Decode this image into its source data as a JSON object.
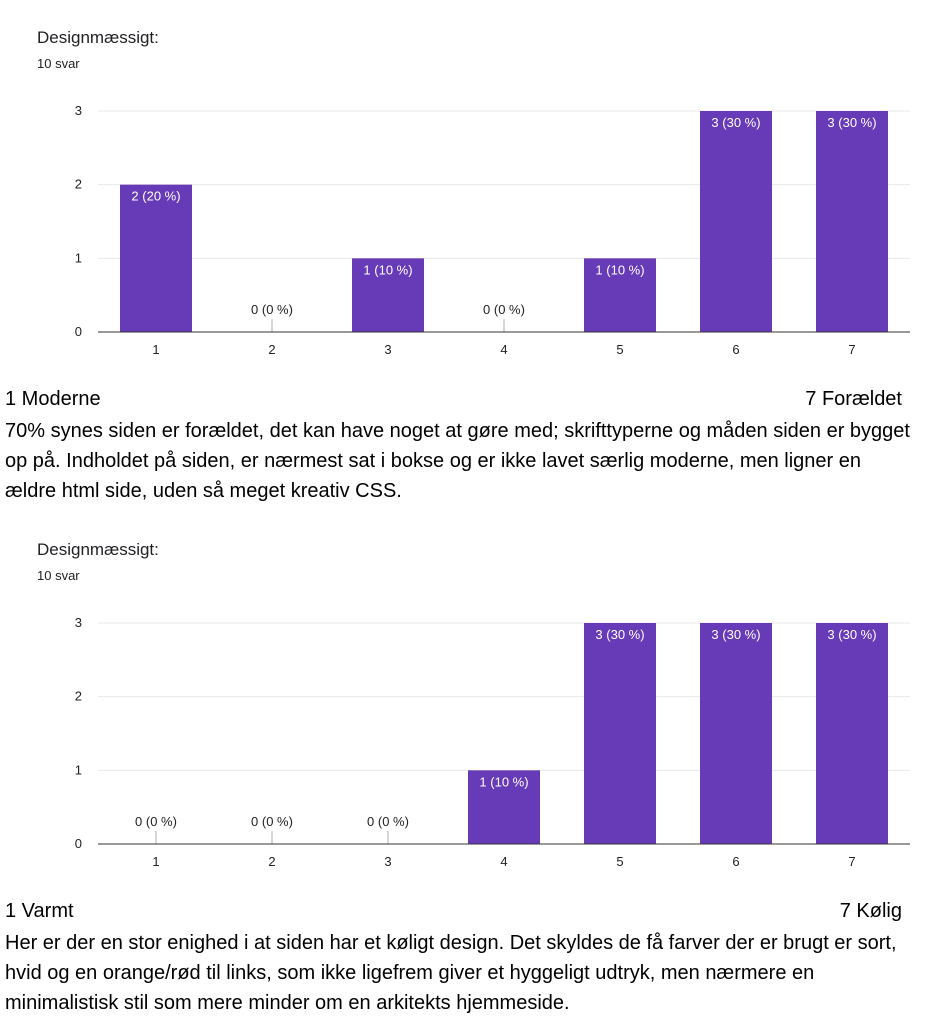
{
  "chart_data": [
    {
      "type": "bar",
      "title": "Designmæssigt:",
      "response_count": "10 svar",
      "categories": [
        "1",
        "2",
        "3",
        "4",
        "5",
        "6",
        "7"
      ],
      "values": [
        2,
        0,
        1,
        0,
        1,
        3,
        3
      ],
      "data_labels": [
        "2 (20 %)",
        "0 (0 %)",
        "1 (10 %)",
        "0 (0 %)",
        "1 (10 %)",
        "3 (30 %)",
        "3 (30 %)"
      ],
      "ylim": [
        0,
        3
      ],
      "yticks": [
        "0",
        "1",
        "2",
        "3"
      ],
      "bar_color": "#673ab7",
      "grid": true,
      "scale_low_label": "1 Moderne",
      "scale_high_label": "7 Forældet"
    },
    {
      "type": "bar",
      "title": "Designmæssigt:",
      "response_count": "10 svar",
      "categories": [
        "1",
        "2",
        "3",
        "4",
        "5",
        "6",
        "7"
      ],
      "values": [
        0,
        0,
        0,
        1,
        3,
        3,
        3
      ],
      "data_labels": [
        "0 (0 %)",
        "0 (0 %)",
        "0 (0 %)",
        "1 (10 %)",
        "3 (30 %)",
        "3 (30 %)",
        "3 (30 %)"
      ],
      "ylim": [
        0,
        3
      ],
      "yticks": [
        "0",
        "1",
        "2",
        "3"
      ],
      "bar_color": "#673ab7",
      "grid": true,
      "scale_low_label": "1 Varmt",
      "scale_high_label": "7 Kølig"
    }
  ],
  "comments": [
    "70% synes siden er forældet, det kan have noget at gøre med; skrifttyperne og måden siden er bygget op på. Indholdet på siden, er nærmest sat i bokse og er ikke lavet særlig moderne, men ligner en ældre html side, uden så meget kreativ CSS.",
    "Her er der en stor enighed i at siden har et køligt design. Det skyldes de få farver der er brugt er sort, hvid og en orange/rød til links, som ikke ligefrem giver et hyggeligt udtryk, men nærmere en minimalistisk stil som mere minder om en arkitekts hjemmeside."
  ]
}
